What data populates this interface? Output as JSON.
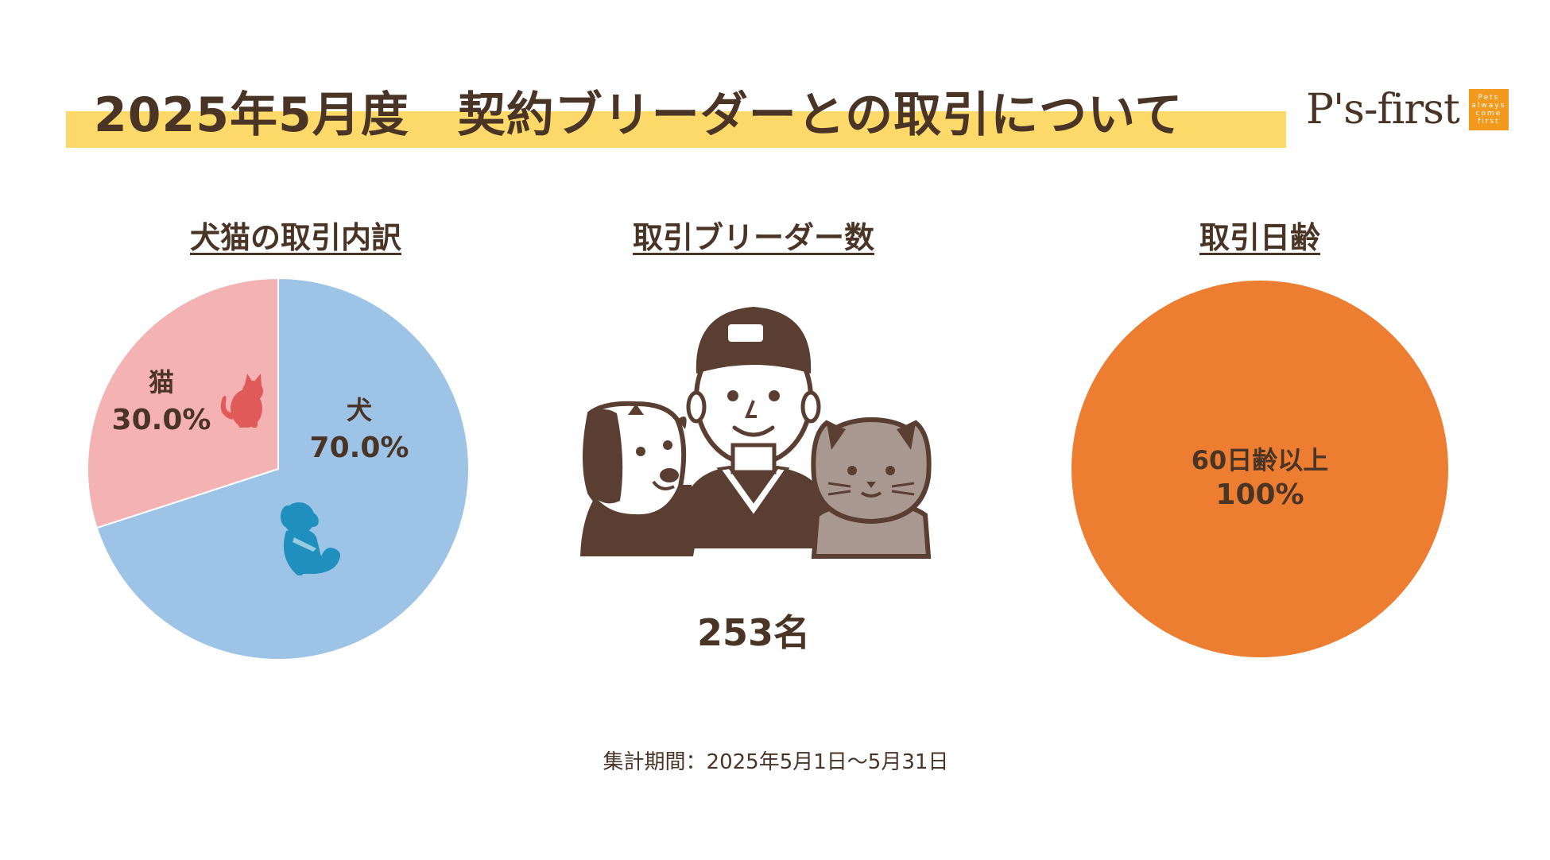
{
  "header": {
    "title": "2025年5月度　契約ブリーダーとの取引について",
    "logo_text": "P's-first",
    "logo_box_lines": [
      "Pets",
      "always",
      "come",
      "first"
    ]
  },
  "sections": {
    "left_heading": "犬猫の取引内訳",
    "center_heading": "取引ブリーダー数",
    "right_heading": "取引日齢"
  },
  "breeder_count": "253名",
  "period": "集計期間：2025年5月1日～5月31日",
  "colors": {
    "dog": "#9dc3e6",
    "cat": "#f4b2b2",
    "age": "#ed7d31",
    "title_bar": "#fdd96a",
    "text": "#4a3426",
    "dog_icon": "#1f8fbd",
    "cat_icon": "#e05a5a"
  },
  "icons": [
    "dog-icon",
    "cat-icon",
    "breeder-illustration"
  ],
  "chart_data": [
    {
      "type": "pie",
      "title": "犬猫の取引内訳",
      "categories": [
        "犬",
        "猫"
      ],
      "values": [
        70.0,
        30.0
      ],
      "value_labels": [
        "70.0%",
        "30.0%"
      ],
      "colors": [
        "#9dc3e6",
        "#f4b2b2"
      ]
    },
    {
      "type": "pie",
      "title": "取引日齢",
      "categories": [
        "60日齢以上"
      ],
      "values": [
        100
      ],
      "value_labels": [
        "100%"
      ],
      "colors": [
        "#ed7d31"
      ]
    }
  ]
}
